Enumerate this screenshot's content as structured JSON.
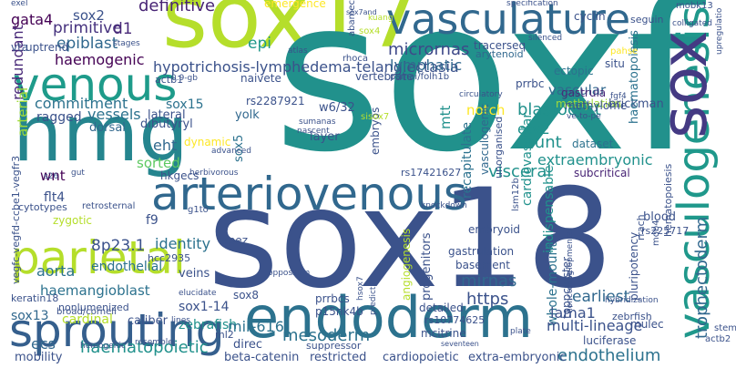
{
  "words": [
    {
      "text": "sox17",
      "color": "#b5de2b"
    },
    {
      "text": "sox18",
      "color": "#3b528b"
    },
    {
      "text": "soxf",
      "color": "#21918c"
    },
    {
      "text": "endoderm",
      "color": "#2c728e"
    },
    {
      "text": "hmg",
      "color": "#25858e"
    },
    {
      "text": "vasculature",
      "color": "#31688e"
    },
    {
      "text": "arteriovenous",
      "color": "#31688e"
    },
    {
      "text": "sprouting",
      "color": "#355f8d"
    },
    {
      "text": "vasculogenesis",
      "color": "#1f988b"
    },
    {
      "text": "venous",
      "color": "#1e9b8a"
    },
    {
      "text": "parietal",
      "color": "#b5de2b"
    },
    {
      "text": "sox",
      "color": "#443a83"
    },
    {
      "text": "hypotrichosis-lymphedema-telangiectasia",
      "color": "#3b528b"
    },
    {
      "text": "definitive",
      "color": "#482475"
    },
    {
      "text": "primitive",
      "color": "#46327e"
    },
    {
      "text": "d1",
      "color": "#482878"
    },
    {
      "text": "micrornas",
      "color": "#3e4989"
    },
    {
      "text": "gata4",
      "color": "#440154"
    },
    {
      "text": "sox2",
      "color": "#3b528b"
    },
    {
      "text": "epiblast",
      "color": "#31688e"
    },
    {
      "text": "lymphatic",
      "color": "#31688e"
    },
    {
      "text": "epi",
      "color": "#1f988b"
    },
    {
      "text": "haemogenic",
      "color": "#440154"
    },
    {
      "text": "redundant",
      "color": "#482878"
    },
    {
      "text": "arterial",
      "color": "#a0da39"
    },
    {
      "text": "commitment",
      "color": "#2c728e"
    },
    {
      "text": "lateral",
      "color": "#3b528b"
    },
    {
      "text": "vessels",
      "color": "#2c728e"
    },
    {
      "text": "ragged",
      "color": "#3b528b"
    },
    {
      "text": "dorsal",
      "color": "#31688e"
    },
    {
      "text": "sox15",
      "color": "#2c728e"
    },
    {
      "text": "eht",
      "color": "#31688e"
    },
    {
      "text": "sorted",
      "color": "#5ec962"
    },
    {
      "text": "hkgecs",
      "color": "#3b528b"
    },
    {
      "text": "wnt",
      "color": "#440154"
    },
    {
      "text": "flt4",
      "color": "#3b528b"
    },
    {
      "text": "f9",
      "color": "#3b528b"
    },
    {
      "text": "s26",
      "color": "#3b528b"
    },
    {
      "text": "dibutyryl",
      "color": "#3b528b"
    },
    {
      "text": "yolk",
      "color": "#31688e"
    },
    {
      "text": "sox5",
      "color": "#2c728e"
    },
    {
      "text": "w6/32",
      "color": "#3b528b"
    },
    {
      "text": "layer",
      "color": "#3b528b"
    },
    {
      "text": "etv2",
      "color": "#21918c"
    },
    {
      "text": "mtt",
      "color": "#21918c"
    },
    {
      "text": "notch",
      "color": "#fde725"
    },
    {
      "text": "blastocyst",
      "color": "#21918c"
    },
    {
      "text": "shunt",
      "color": "#21918c"
    },
    {
      "text": "dataset",
      "color": "#2c728e"
    },
    {
      "text": "extraembryonic",
      "color": "#21918c"
    },
    {
      "text": "visceral",
      "color": "#21918c"
    },
    {
      "text": "subcritical",
      "color": "#482475"
    },
    {
      "text": "vascular",
      "color": "#31688e"
    },
    {
      "text": "methylation",
      "color": "#a0da39"
    },
    {
      "text": "gastrula",
      "color": "#482878"
    },
    {
      "text": "methylome",
      "color": "#3b528b"
    },
    {
      "text": "brickman",
      "color": "#3b528b"
    },
    {
      "text": "haematopoiesis",
      "color": "#2c728e"
    },
    {
      "text": "hematopoiesis",
      "color": "#3b528b"
    },
    {
      "text": "situ",
      "color": "#3b528b"
    },
    {
      "text": "ectopic",
      "color": "#2c728e"
    },
    {
      "text": "prrbc",
      "color": "#3b528b"
    },
    {
      "text": "tracerseq",
      "color": "#3b528b"
    },
    {
      "text": "arytenoid",
      "color": "#31688e"
    },
    {
      "text": "cyclin",
      "color": "#3b528b"
    },
    {
      "text": "seguin",
      "color": "#3b528b"
    },
    {
      "text": "sox4",
      "color": "#b5de2b"
    },
    {
      "text": "kuang",
      "color": "#b5de2b"
    },
    {
      "text": "sox7and",
      "color": "#3b528b"
    },
    {
      "text": "emergence",
      "color": "#fde725"
    },
    {
      "text": "actb1",
      "color": "#3b528b"
    },
    {
      "text": "0.9-gb",
      "color": "#3b528b"
    },
    {
      "text": "naivete",
      "color": "#3b528b"
    },
    {
      "text": "rs2287921",
      "color": "#3b528b"
    },
    {
      "text": "vertebrate",
      "color": "#3b528b"
    },
    {
      "text": "abamectin",
      "color": "#3b528b"
    },
    {
      "text": "rhoca",
      "color": "#3b528b"
    },
    {
      "text": "psmai/folh1b",
      "color": "#3b528b"
    },
    {
      "text": "unorganised",
      "color": "#3b528b"
    },
    {
      "text": "vasculogenic",
      "color": "#31688e"
    },
    {
      "text": "recapitulate",
      "color": "#2c728e"
    },
    {
      "text": "cardiovascular",
      "color": "#21918c"
    },
    {
      "text": "indispensable",
      "color": "#21918c"
    },
    {
      "text": "rs17421627",
      "color": "#3b528b"
    },
    {
      "text": "embryos",
      "color": "#3b528b"
    },
    {
      "text": "8p23.1",
      "color": "#3b528b"
    },
    {
      "text": "identity",
      "color": "#2c728e"
    },
    {
      "text": "iapez",
      "color": "#3b528b"
    },
    {
      "text": "aorta",
      "color": "#2c728e"
    },
    {
      "text": "endothelial",
      "color": "#2c728e"
    },
    {
      "text": "veins",
      "color": "#3b528b"
    },
    {
      "text": "hcc2935",
      "color": "#3b528b"
    },
    {
      "text": "haemangioblast",
      "color": "#2c728e"
    },
    {
      "text": "keratin18",
      "color": "#3b528b"
    },
    {
      "text": "nonlumenized",
      "color": "#3b528b"
    },
    {
      "text": "sox13",
      "color": "#31688e"
    },
    {
      "text": "cardinal",
      "color": "#b5de2b"
    },
    {
      "text": "caliber",
      "color": "#3b528b"
    },
    {
      "text": "sox1-14",
      "color": "#3b528b"
    },
    {
      "text": "zebrafish",
      "color": "#21918c"
    },
    {
      "text": "mir-616",
      "color": "#2c728e"
    },
    {
      "text": "sox8",
      "color": "#3b528b"
    },
    {
      "text": "prrbcs",
      "color": "#3b528b"
    },
    {
      "text": "p15nk4b",
      "color": "#3b528b"
    },
    {
      "text": "mesoderm",
      "color": "#2c728e"
    },
    {
      "text": "mirnas",
      "color": "#31688e"
    },
    {
      "text": "https",
      "color": "#3b528b"
    },
    {
      "text": "basement",
      "color": "#3b528b"
    },
    {
      "text": "gastrulation",
      "color": "#3b528b"
    },
    {
      "text": "embryoid",
      "color": "#3b528b"
    },
    {
      "text": "whole-mount",
      "color": "#2c728e"
    },
    {
      "text": "toppcluster",
      "color": "#3b528b"
    },
    {
      "text": "earliest",
      "color": "#31688e"
    },
    {
      "text": "lama1",
      "color": "#3b528b"
    },
    {
      "text": "multi-lineage",
      "color": "#3b528b"
    },
    {
      "text": "luciferase",
      "color": "#3b528b"
    },
    {
      "text": "endothelium",
      "color": "#2c728e"
    },
    {
      "text": "trophectoderm",
      "color": "#31688e"
    },
    {
      "text": "blood",
      "color": "#3b528b"
    },
    {
      "text": "rs225717",
      "color": "#3b528b"
    },
    {
      "text": "rrach",
      "color": "#3b528b"
    },
    {
      "text": "pluripotency",
      "color": "#3b528b"
    },
    {
      "text": "mulec",
      "color": "#3b528b"
    },
    {
      "text": "zebrfish",
      "color": "#3b528b"
    },
    {
      "text": "ecs",
      "color": "#31688e"
    },
    {
      "text": "broad/cornell",
      "color": "#3b528b"
    },
    {
      "text": "haematopoietic",
      "color": "#21918c"
    },
    {
      "text": "mobility",
      "color": "#3b528b"
    },
    {
      "text": "ml2",
      "color": "#3b528b"
    },
    {
      "text": "direc",
      "color": "#3b528b"
    },
    {
      "text": "beta-catenin",
      "color": "#3b528b"
    },
    {
      "text": "restricted",
      "color": "#3b528b"
    },
    {
      "text": "cardiopoietic",
      "color": "#3b528b"
    },
    {
      "text": "extra-embryonic",
      "color": "#3b528b"
    },
    {
      "text": "suppressor",
      "color": "#3b528b"
    },
    {
      "text": "mcitrine",
      "color": "#3b528b"
    },
    {
      "text": "detailed",
      "color": "#3b528b"
    },
    {
      "text": "rs10774625",
      "color": "#3b528b"
    },
    {
      "text": "progenitors",
      "color": "#3b528b"
    },
    {
      "text": "angiogenesis",
      "color": "#b5de2b"
    },
    {
      "text": "vegfc-vegfd-ccbe1-vegfr3",
      "color": "#3b528b"
    },
    {
      "text": "cytotypes",
      "color": "#3b528b"
    },
    {
      "text": "zygotic",
      "color": "#b5de2b"
    },
    {
      "text": "retrosternal",
      "color": "#3b528b"
    },
    {
      "text": "g1to",
      "color": "#3b528b"
    },
    {
      "text": "oppossum",
      "color": "#3b528b"
    },
    {
      "text": "uptrend",
      "color": "#3b528b"
    },
    {
      "text": "vta",
      "color": "#3b528b"
    },
    {
      "text": "exel",
      "color": "#3b528b"
    },
    {
      "text": "mobk13",
      "color": "#3b528b"
    },
    {
      "text": "colligated",
      "color": "#3b528b"
    },
    {
      "text": "upregulatio",
      "color": "#3b528b"
    },
    {
      "text": "specification",
      "color": "#3b528b"
    },
    {
      "text": "silenced",
      "color": "#3b528b"
    },
    {
      "text": "stages",
      "color": "#3b528b"
    },
    {
      "text": "atlas",
      "color": "#3b528b"
    },
    {
      "text": "circulatory",
      "color": "#3b528b"
    },
    {
      "text": "sumanas",
      "color": "#3b528b"
    },
    {
      "text": "nascent",
      "color": "#3b528b"
    },
    {
      "text": "sisox7",
      "color": "#b5de2b"
    },
    {
      "text": "dynamic",
      "color": "#fde725"
    },
    {
      "text": "advanced",
      "color": "#3b528b"
    },
    {
      "text": "gut",
      "color": "#3b528b"
    },
    {
      "text": "herbivorous",
      "color": "#3b528b"
    },
    {
      "text": "knockdown",
      "color": "#3b528b"
    },
    {
      "text": "hemogenic",
      "color": "#3b528b"
    },
    {
      "text": "stem",
      "color": "#3b528b"
    },
    {
      "text": "actb2",
      "color": "#3b528b"
    },
    {
      "text": "seventeen",
      "color": "#3b528b"
    },
    {
      "text": "plate",
      "color": "#3b528b"
    },
    {
      "text": "resemble",
      "color": "#3b528b"
    },
    {
      "text": "lines",
      "color": "#3b528b"
    },
    {
      "text": "lsm12b",
      "color": "#3b528b"
    },
    {
      "text": "developmental",
      "color": "#3b528b"
    },
    {
      "text": "mob4",
      "color": "#3b528b"
    },
    {
      "text": "hsox7",
      "color": "#3b528b"
    },
    {
      "text": "elucidate",
      "color": "#3b528b"
    },
    {
      "text": "pahse",
      "color": "#fde725"
    },
    {
      "text": "fgf4",
      "color": "#3b528b"
    },
    {
      "text": "ve-to-pe",
      "color": "#3b528b"
    },
    {
      "text": "noncoding",
      "color": "#3b528b"
    },
    {
      "text": "predict",
      "color": "#3b528b"
    },
    {
      "text": "hybridization",
      "color": "#3b528b"
    }
  ]
}
